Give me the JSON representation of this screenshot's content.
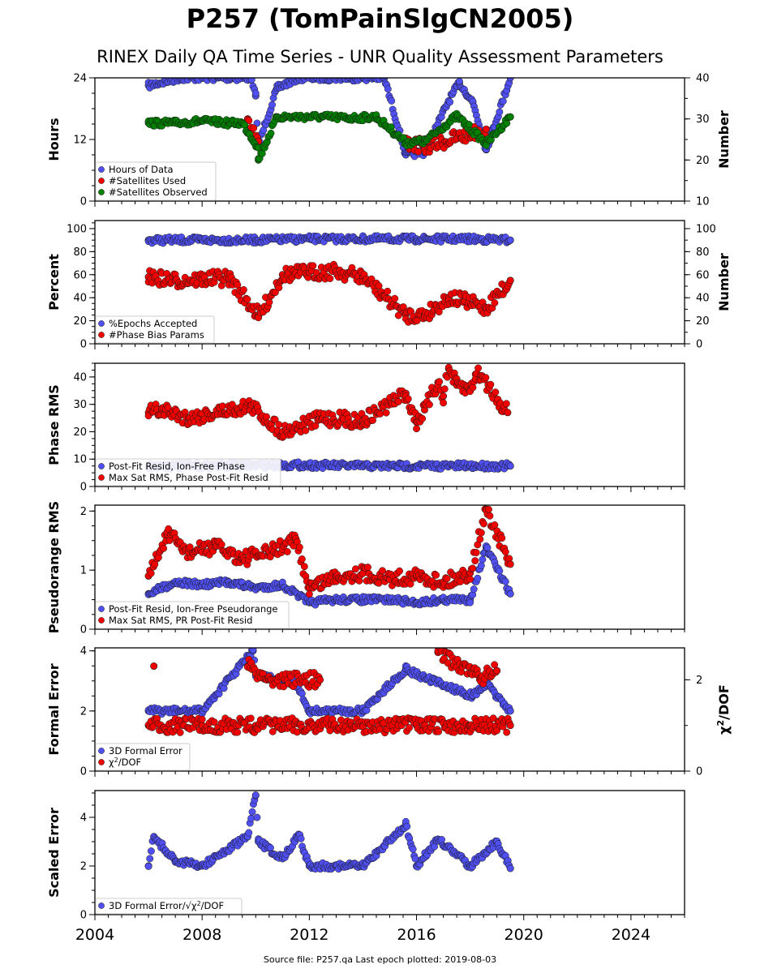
{
  "title": "P257 (TomPainSlgCN2005)",
  "subtitle": "RINEX Daily QA Time Series - UNR Quality Assessment Parameters",
  "footer": "Source file: P257.qa Last epoch plotted: 2019-08-03",
  "colors": {
    "blue": "#4f4ff2",
    "red": "#f20000",
    "green": "#008000",
    "edge": "#1a1a1a"
  },
  "chart_data": [
    {
      "type": "scatter",
      "ylabel": "Hours",
      "ylabel_right": "Number",
      "xlim": [
        2004,
        2026
      ],
      "x_ticks": [
        "2004",
        "2008",
        "2012",
        "2016",
        "2020",
        "2024"
      ],
      "ylim": [
        0,
        24
      ],
      "y_ticks": [
        "0",
        "12",
        "24"
      ],
      "ylim_right": [
        10,
        40
      ],
      "y_ticks_right": [
        "10",
        "20",
        "30",
        "40"
      ],
      "legend_position": "lower-left",
      "series": [
        {
          "name": "Hours of Data",
          "color": "blue",
          "axis": "left",
          "x": [
            2006.0,
            2007.2,
            2008.6,
            2009.8,
            2010.0,
            2010.1,
            2010.8,
            2011.6,
            2012.3,
            2013.5,
            2014.8,
            2015.6,
            2016.3,
            2017.2,
            2017.6,
            2018.1,
            2018.6,
            2019.5
          ],
          "y": [
            22.5,
            24,
            24,
            24,
            20.5,
            11,
            22.0,
            24,
            24,
            24,
            24,
            9.0,
            9.5,
            19.5,
            23.0,
            19.3,
            10.0,
            24
          ]
        },
        {
          "name": "#Satellites Used",
          "color": "red",
          "axis": "right",
          "x": [
            2009.7,
            2010.1,
            2015.6,
            2016.3,
            2018.6
          ],
          "y": [
            30,
            24.5,
            24.2,
            23.2,
            27.5
          ]
        },
        {
          "name": "#Satellites Observed",
          "color": "green",
          "axis": "right",
          "x": [
            2006.0,
            2007.0,
            2008.0,
            2009.0,
            2009.5,
            2010.1,
            2010.1,
            2010.8,
            2011.5,
            2012.5,
            2013.5,
            2014.5,
            2015.6,
            2016.3,
            2017.5,
            2018.6,
            2019.5
          ],
          "y": [
            29,
            29,
            29.5,
            29,
            29,
            23.0,
            20.0,
            30.5,
            30.5,
            30.5,
            30.2,
            30.5,
            24.2,
            24.5,
            30.7,
            24.0,
            30.5
          ]
        }
      ]
    },
    {
      "type": "scatter",
      "ylabel": "Percent",
      "ylabel_right": "Number",
      "xlim": [
        2004,
        2026
      ],
      "ylim": [
        0,
        107
      ],
      "y_ticks": [
        "0",
        "20",
        "40",
        "60",
        "80",
        "100"
      ],
      "ylim_right": [
        0,
        107
      ],
      "y_ticks_right": [
        "0",
        "20",
        "40",
        "60",
        "80",
        "100"
      ],
      "legend_position": "lower-left",
      "series": [
        {
          "name": "%Epochs Accepted",
          "color": "blue",
          "axis": "left",
          "x": [
            2006.0,
            2008.0,
            2010.0,
            2012.0,
            2014.0,
            2016.0,
            2018.0,
            2019.5
          ],
          "y": [
            90,
            90,
            90,
            91,
            91,
            91,
            91,
            90
          ]
        },
        {
          "name": "#Phase Bias Params",
          "color": "red",
          "axis": "right",
          "x": [
            2006.0,
            2007.0,
            2008.0,
            2009.0,
            2010.1,
            2010.1,
            2011.0,
            2012.0,
            2013.0,
            2014.0,
            2015.6,
            2016.3,
            2017.2,
            2017.8,
            2018.6,
            2019.5
          ],
          "y": [
            58,
            55,
            56,
            57,
            25,
            23,
            60,
            62,
            63,
            58,
            25,
            25,
            40,
            37,
            31,
            55
          ]
        }
      ]
    },
    {
      "type": "scatter",
      "ylabel": "Phase RMS",
      "xlim": [
        2004,
        2026
      ],
      "ylim": [
        0,
        45
      ],
      "y_ticks": [
        "0",
        "10",
        "20",
        "30",
        "40"
      ],
      "legend_position": "lower-left",
      "series": [
        {
          "name": "Post-Fit Resid, Ion-Free Phase",
          "color": "blue",
          "x": [
            2006.0,
            2008.0,
            2010.0,
            2012.0,
            2014.0,
            2016.0,
            2018.0,
            2019.5
          ],
          "y": [
            7.5,
            7.5,
            7.8,
            7.8,
            7.5,
            7.5,
            7.5,
            7.5
          ]
        },
        {
          "name": "Max Sat RMS, Phase Post-Fit Resid",
          "color": "red",
          "x": [
            2006.0,
            2006.5,
            2007.5,
            2009.8,
            2011.0,
            2012.5,
            2014.0,
            2015.6,
            2016.0,
            2016.3,
            2016.8,
            2017.0,
            2017.2,
            2017.5,
            2018.0,
            2018.2,
            2018.4,
            2019.4
          ],
          "y": [
            27,
            28,
            25,
            29.5,
            20,
            25,
            24,
            34,
            23.5,
            28,
            38,
            33,
            43,
            37,
            35,
            41,
            40.5,
            27
          ]
        }
      ]
    },
    {
      "type": "scatter",
      "ylabel": "Pseudorange RMS",
      "xlim": [
        2004,
        2026
      ],
      "ylim": [
        0,
        2.1
      ],
      "y_ticks": [
        "0",
        "1",
        "2"
      ],
      "legend_position": "lower-left",
      "series": [
        {
          "name": "Post-Fit Resid, Ion-Free Pseudorange",
          "color": "blue",
          "x": [
            2006.0,
            2007.0,
            2008.0,
            2009.0,
            2010.0,
            2011.0,
            2012.0,
            2013.0,
            2014.0,
            2015.0,
            2016.0,
            2017.0,
            2018.0,
            2018.6,
            2019.5
          ],
          "y": [
            0.6,
            0.8,
            0.75,
            0.8,
            0.7,
            0.75,
            0.45,
            0.5,
            0.5,
            0.5,
            0.45,
            0.5,
            0.5,
            1.38,
            0.6
          ]
        },
        {
          "name": "Max Sat RMS, PR Post-Fit Resid",
          "color": "red",
          "x": [
            2006.0,
            2006.7,
            2007.5,
            2008.5,
            2009.5,
            2010.5,
            2011.5,
            2012.0,
            2013.0,
            2014.0,
            2015.0,
            2016.0,
            2017.0,
            2018.0,
            2018.6,
            2019.5
          ],
          "y": [
            0.9,
            1.6,
            1.3,
            1.4,
            1.2,
            1.3,
            1.5,
            0.7,
            0.9,
            0.95,
            0.85,
            0.9,
            0.8,
            0.95,
            2.03,
            1.1
          ]
        }
      ]
    },
    {
      "type": "scatter",
      "ylabel": "Formal Error",
      "ylabel_right": "χ²/DOF",
      "xlim": [
        2004,
        2026
      ],
      "ylim": [
        0,
        4.1
      ],
      "y_ticks": [
        "0",
        "2",
        "4"
      ],
      "ylim_right": [
        0,
        2.7
      ],
      "y_ticks_right": [
        "0",
        "2"
      ],
      "legend_position": "lower-left",
      "series": [
        {
          "name": "3D Formal Error",
          "color": "blue",
          "axis": "left",
          "x": [
            2006.0,
            2008.0,
            2009.9,
            2010.0,
            2011.5,
            2012.0,
            2014.0,
            2015.6,
            2016.3,
            2018.1,
            2018.6,
            2019.5
          ],
          "y": [
            2.0,
            2.0,
            4.0,
            3.2,
            2.9,
            2.0,
            2.0,
            3.4,
            3.1,
            2.5,
            2.9,
            2.0
          ]
        },
        {
          "name": "$\\chi^2$/DOF",
          "color": "red",
          "axis": "right",
          "x": [
            2006.2,
            2009.7,
            2010.5,
            2012.4,
            2016.8,
            2018.4,
            2019.0,
            2006.0,
            2008.0,
            2010.0,
            2012.0,
            2014.0,
            2016.0,
            2018.0,
            2019.5
          ],
          "y": [
            2.3,
            2.3,
            2.0,
            2.0,
            2.6,
            2.05,
            2.2,
            1.0,
            1.0,
            1.0,
            1.0,
            1.0,
            1.0,
            1.0,
            1.0
          ]
        }
      ]
    },
    {
      "type": "scatter",
      "ylabel": "Scaled Error",
      "xlim": [
        2004,
        2026
      ],
      "ylim": [
        0,
        5.1
      ],
      "y_ticks": [
        "0",
        "2",
        "4"
      ],
      "legend_position": "lower-left",
      "series": [
        {
          "name": "3D Formal Error/$\\sqrt{\\chi^2/DOF}$",
          "color": "blue",
          "x": [
            2006.0,
            2006.2,
            2007.0,
            2008.0,
            2009.7,
            2010.0,
            2010.1,
            2011.0,
            2011.6,
            2012.0,
            2013.0,
            2014.0,
            2015.6,
            2016.0,
            2016.8,
            2018.0,
            2019.0,
            2019.5
          ],
          "y": [
            2.0,
            3.2,
            2.2,
            2.0,
            3.2,
            4.9,
            3.0,
            2.3,
            3.3,
            2.0,
            2.0,
            2.0,
            3.7,
            2.0,
            3.1,
            2.0,
            3.0,
            1.9
          ]
        }
      ]
    }
  ]
}
